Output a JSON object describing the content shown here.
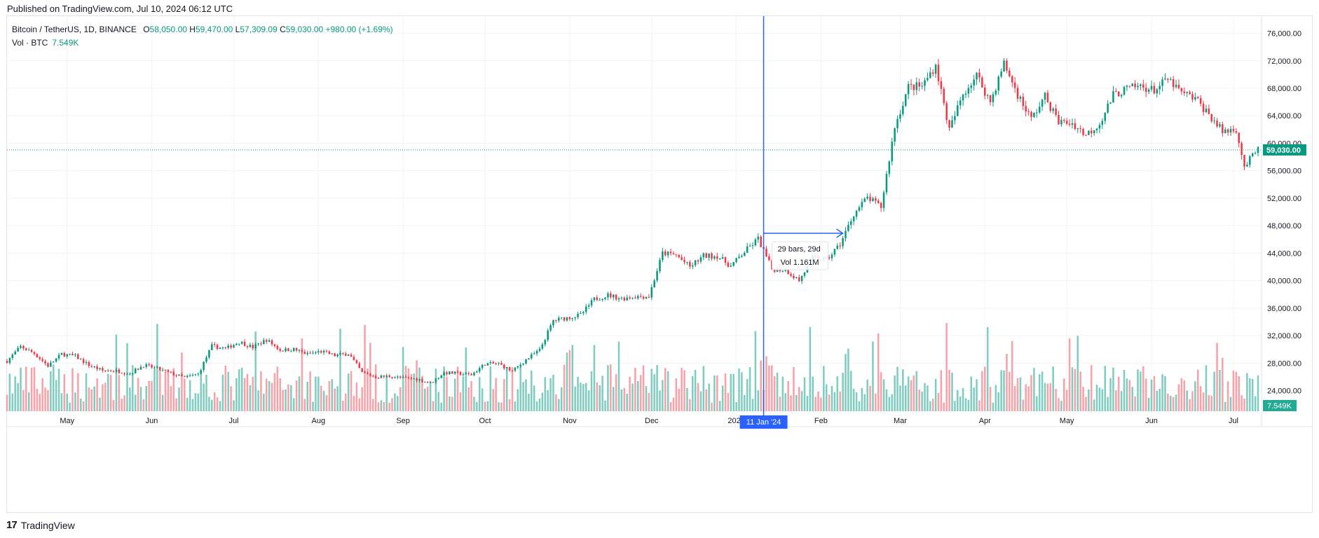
{
  "header": {
    "published": "Published on TradingView.com, Jul 10, 2024 06:12 UTC"
  },
  "legend": {
    "symbol": "Bitcoin / TetherUS, 1D, BINANCE",
    "o_label": "O",
    "open": "58,050.00",
    "h_label": "H",
    "high": "59,470.00",
    "l_label": "L",
    "low": "57,309.09",
    "c_label": "C",
    "close": "59,030.00",
    "change": "+980.00 (+1.69%)",
    "vol_label": "Vol · BTC",
    "vol_value": "7.549K"
  },
  "footer": {
    "brand": "TradingView"
  },
  "colors": {
    "up": "#089981",
    "down": "#f23645",
    "up_vol": "#7fccc0",
    "down_vol": "#f7a1a8",
    "crosshair": "#2962ff",
    "badge": "#22ab94"
  },
  "chart_data": {
    "type": "candlestick",
    "symbol": "BTCUSDT",
    "exchange": "BINANCE",
    "interval": "1D",
    "ylim": [
      21000,
      78500
    ],
    "y_ticks": [
      24000,
      28000,
      32000,
      36000,
      40000,
      44000,
      48000,
      52000,
      56000,
      60000,
      64000,
      68000,
      72000,
      76000
    ],
    "y_tick_labels": [
      "24,000.00",
      "28,000.00",
      "32,000.00",
      "36,000.00",
      "40,000.00",
      "44,000.00",
      "48,000.00",
      "52,000.00",
      "56,000.00",
      "60,000.00",
      "64,000.00",
      "68,000.00",
      "72,000.00",
      "76,000.00"
    ],
    "x_tick_labels": [
      "May",
      "Jun",
      "Jul",
      "Aug",
      "Sep",
      "Oct",
      "Nov",
      "Dec",
      "2024",
      "Feb",
      "Mar",
      "Apr",
      "May",
      "Jun",
      "Jul"
    ],
    "x_tick_dates": [
      "2023-05-01",
      "2023-06-01",
      "2023-07-01",
      "2023-08-01",
      "2023-09-01",
      "2023-10-01",
      "2023-11-01",
      "2023-12-01",
      "2024-01-01",
      "2024-02-01",
      "2024-03-01",
      "2024-04-01",
      "2024-05-01",
      "2024-06-01",
      "2024-07-01"
    ],
    "start_date": "2023-04-09",
    "end_date": "2024-07-10",
    "close_series": [
      [
        "2023-04-09",
        28300
      ],
      [
        "2023-04-14",
        30400
      ],
      [
        "2023-04-19",
        29400
      ],
      [
        "2023-04-24",
        27600
      ],
      [
        "2023-04-29",
        29300
      ],
      [
        "2023-05-04",
        29000
      ],
      [
        "2023-05-09",
        27700
      ],
      [
        "2023-05-14",
        26900
      ],
      [
        "2023-05-19",
        26900
      ],
      [
        "2023-05-24",
        26500
      ],
      [
        "2023-05-29",
        27700
      ],
      [
        "2023-06-03",
        27200
      ],
      [
        "2023-06-08",
        26500
      ],
      [
        "2023-06-13",
        25900
      ],
      [
        "2023-06-18",
        26400
      ],
      [
        "2023-06-23",
        30500
      ],
      [
        "2023-06-28",
        30100
      ],
      [
        "2023-07-03",
        31100
      ],
      [
        "2023-07-08",
        30300
      ],
      [
        "2023-07-13",
        31400
      ],
      [
        "2023-07-18",
        29900
      ],
      [
        "2023-07-23",
        30000
      ],
      [
        "2023-07-28",
        29300
      ],
      [
        "2023-08-02",
        29700
      ],
      [
        "2023-08-07",
        29100
      ],
      [
        "2023-08-12",
        29400
      ],
      [
        "2023-08-17",
        26600
      ],
      [
        "2023-08-22",
        26000
      ],
      [
        "2023-08-27",
        26100
      ],
      [
        "2023-09-01",
        25800
      ],
      [
        "2023-09-06",
        25700
      ],
      [
        "2023-09-11",
        25100
      ],
      [
        "2023-09-16",
        26600
      ],
      [
        "2023-09-21",
        26500
      ],
      [
        "2023-09-26",
        26300
      ],
      [
        "2023-10-01",
        27900
      ],
      [
        "2023-10-06",
        27900
      ],
      [
        "2023-10-11",
        26800
      ],
      [
        "2023-10-16",
        28500
      ],
      [
        "2023-10-21",
        29900
      ],
      [
        "2023-10-26",
        34200
      ],
      [
        "2023-10-31",
        34600
      ],
      [
        "2023-11-05",
        35000
      ],
      [
        "2023-11-10",
        37300
      ],
      [
        "2023-11-15",
        37900
      ],
      [
        "2023-11-20",
        37400
      ],
      [
        "2023-11-25",
        37700
      ],
      [
        "2023-11-30",
        37700
      ],
      [
        "2023-12-05",
        44000
      ],
      [
        "2023-12-10",
        43700
      ],
      [
        "2023-12-15",
        42000
      ],
      [
        "2023-12-20",
        43600
      ],
      [
        "2023-12-25",
        43600
      ],
      [
        "2023-12-30",
        42100
      ],
      [
        "2024-01-04",
        44200
      ],
      [
        "2024-01-09",
        46100
      ],
      [
        "2024-01-14",
        41700
      ],
      [
        "2024-01-19",
        41600
      ],
      [
        "2024-01-24",
        40000
      ],
      [
        "2024-01-29",
        43300
      ],
      [
        "2024-02-03",
        43000
      ],
      [
        "2024-02-08",
        45300
      ],
      [
        "2024-02-13",
        49700
      ],
      [
        "2024-02-18",
        52100
      ],
      [
        "2024-02-23",
        50700
      ],
      [
        "2024-02-28",
        62400
      ],
      [
        "2024-03-04",
        68200
      ],
      [
        "2024-03-09",
        68300
      ],
      [
        "2024-03-14",
        71400
      ],
      [
        "2024-03-19",
        61900
      ],
      [
        "2024-03-24",
        67200
      ],
      [
        "2024-03-29",
        69900
      ],
      [
        "2024-04-03",
        66000
      ],
      [
        "2024-04-08",
        71600
      ],
      [
        "2024-04-13",
        67100
      ],
      [
        "2024-04-18",
        63500
      ],
      [
        "2024-04-23",
        66800
      ],
      [
        "2024-04-28",
        63100
      ],
      [
        "2024-05-03",
        62900
      ],
      [
        "2024-05-08",
        61200
      ],
      [
        "2024-05-13",
        62900
      ],
      [
        "2024-05-18",
        67000
      ],
      [
        "2024-05-23",
        67900
      ],
      [
        "2024-05-28",
        68300
      ],
      [
        "2024-06-02",
        67700
      ],
      [
        "2024-06-07",
        69300
      ],
      [
        "2024-06-12",
        67300
      ],
      [
        "2024-06-17",
        66500
      ],
      [
        "2024-06-22",
        64200
      ],
      [
        "2024-06-27",
        61700
      ],
      [
        "2024-07-02",
        62100
      ],
      [
        "2024-07-05",
        56600
      ],
      [
        "2024-07-10",
        59030
      ]
    ],
    "measurement": {
      "bars_text": "29 bars, 29d",
      "vol_text": "Vol 1.161M",
      "from": "2024-01-11",
      "to": "2024-02-09",
      "price": 46900
    },
    "crosshair": {
      "date_label": "11 Jan '24",
      "date": "2024-01-11"
    },
    "last_price": {
      "value": 59030,
      "label": "59,030.00"
    },
    "last_volume": {
      "label": "7.549K"
    },
    "grid": true
  }
}
